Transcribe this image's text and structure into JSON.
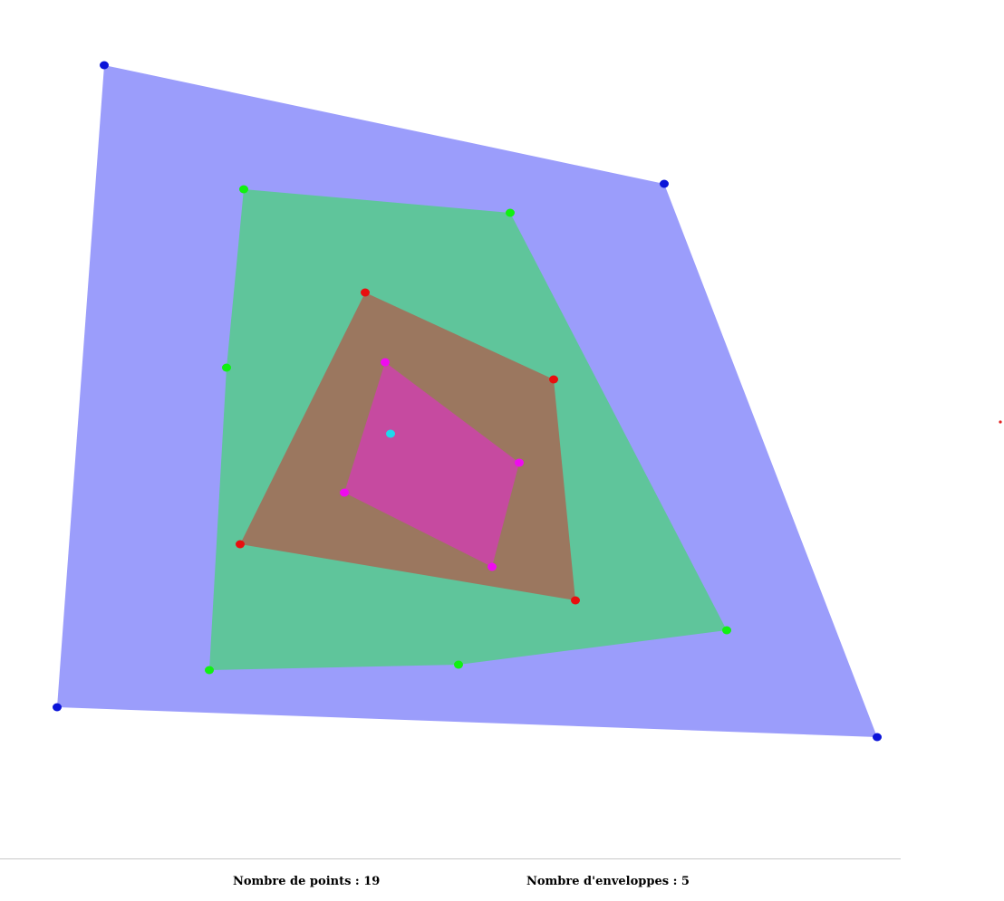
{
  "status": {
    "points_label": "Nombre de points : 19",
    "hulls_label": "Nombre d'enveloppes : 5"
  },
  "hull_colors": {
    "layer_1": {
      "fill": "#9b9dfb",
      "point": "#0b14d9"
    },
    "layer_2": {
      "fill": "#5fc59b",
      "point": "#11f111"
    },
    "layer_3": {
      "fill": "#9b775f",
      "point": "#e80f0f"
    },
    "layer_4": {
      "fill": "#c64aa0",
      "point": "#ef0bef"
    },
    "layer_5": {
      "point": "#1fd8ec"
    },
    "stray_point": "#e22020"
  }
}
